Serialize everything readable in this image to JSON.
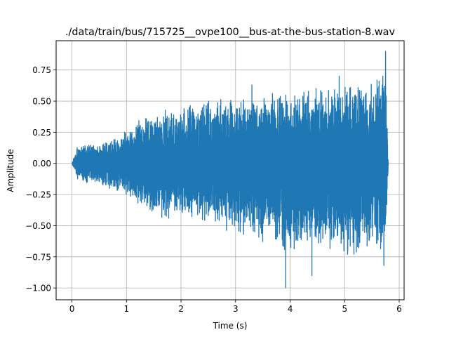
{
  "chart_data": {
    "type": "line",
    "title": "./data/train/bus/715725__ovpe100__bus-at-the-bus-station-8.wav",
    "xlabel": "Time (s)",
    "ylabel": "Amplitude",
    "xlim": [
      -0.29,
      6.09
    ],
    "ylim": [
      -1.095,
      0.985
    ],
    "xticks": [
      0,
      1,
      2,
      3,
      4,
      5,
      6
    ],
    "xtick_labels": [
      "0",
      "1",
      "2",
      "3",
      "4",
      "5",
      "6"
    ],
    "yticks": [
      -1.0,
      -0.75,
      -0.5,
      -0.25,
      0.0,
      0.25,
      0.5,
      0.75
    ],
    "ytick_labels": [
      "−1.00",
      "−0.75",
      "−0.50",
      "−0.25",
      "0.00",
      "0.25",
      "0.50",
      "0.75"
    ],
    "grid": true,
    "series": [
      {
        "color": "#1f77b4",
        "duration": 5.8,
        "envelope": {
          "t": [
            0.0,
            0.05,
            0.1,
            0.2,
            0.5,
            1.0,
            1.2,
            1.5,
            2.0,
            2.5,
            3.0,
            3.5,
            4.0,
            4.5,
            5.0,
            5.5,
            5.75,
            5.8
          ],
          "upper": [
            0.0,
            0.08,
            0.15,
            0.15,
            0.18,
            0.26,
            0.35,
            0.42,
            0.47,
            0.52,
            0.56,
            0.58,
            0.6,
            0.62,
            0.65,
            0.65,
            0.9,
            0.0
          ],
          "lower": [
            0.0,
            -0.06,
            -0.14,
            -0.15,
            -0.18,
            -0.26,
            -0.36,
            -0.45,
            -0.45,
            -0.5,
            -0.6,
            -0.65,
            -0.72,
            -0.7,
            -0.75,
            -0.75,
            -0.78,
            0.0
          ]
        },
        "peaks": [
          {
            "t": 3.92,
            "value": -1.0
          },
          {
            "t": 4.4,
            "value": -0.9
          },
          {
            "t": 5.75,
            "value": 0.9
          },
          {
            "t": 5.72,
            "value": -0.82
          },
          {
            "t": 3.3,
            "value": 0.63
          },
          {
            "t": 4.9,
            "value": 0.7
          }
        ]
      }
    ]
  }
}
